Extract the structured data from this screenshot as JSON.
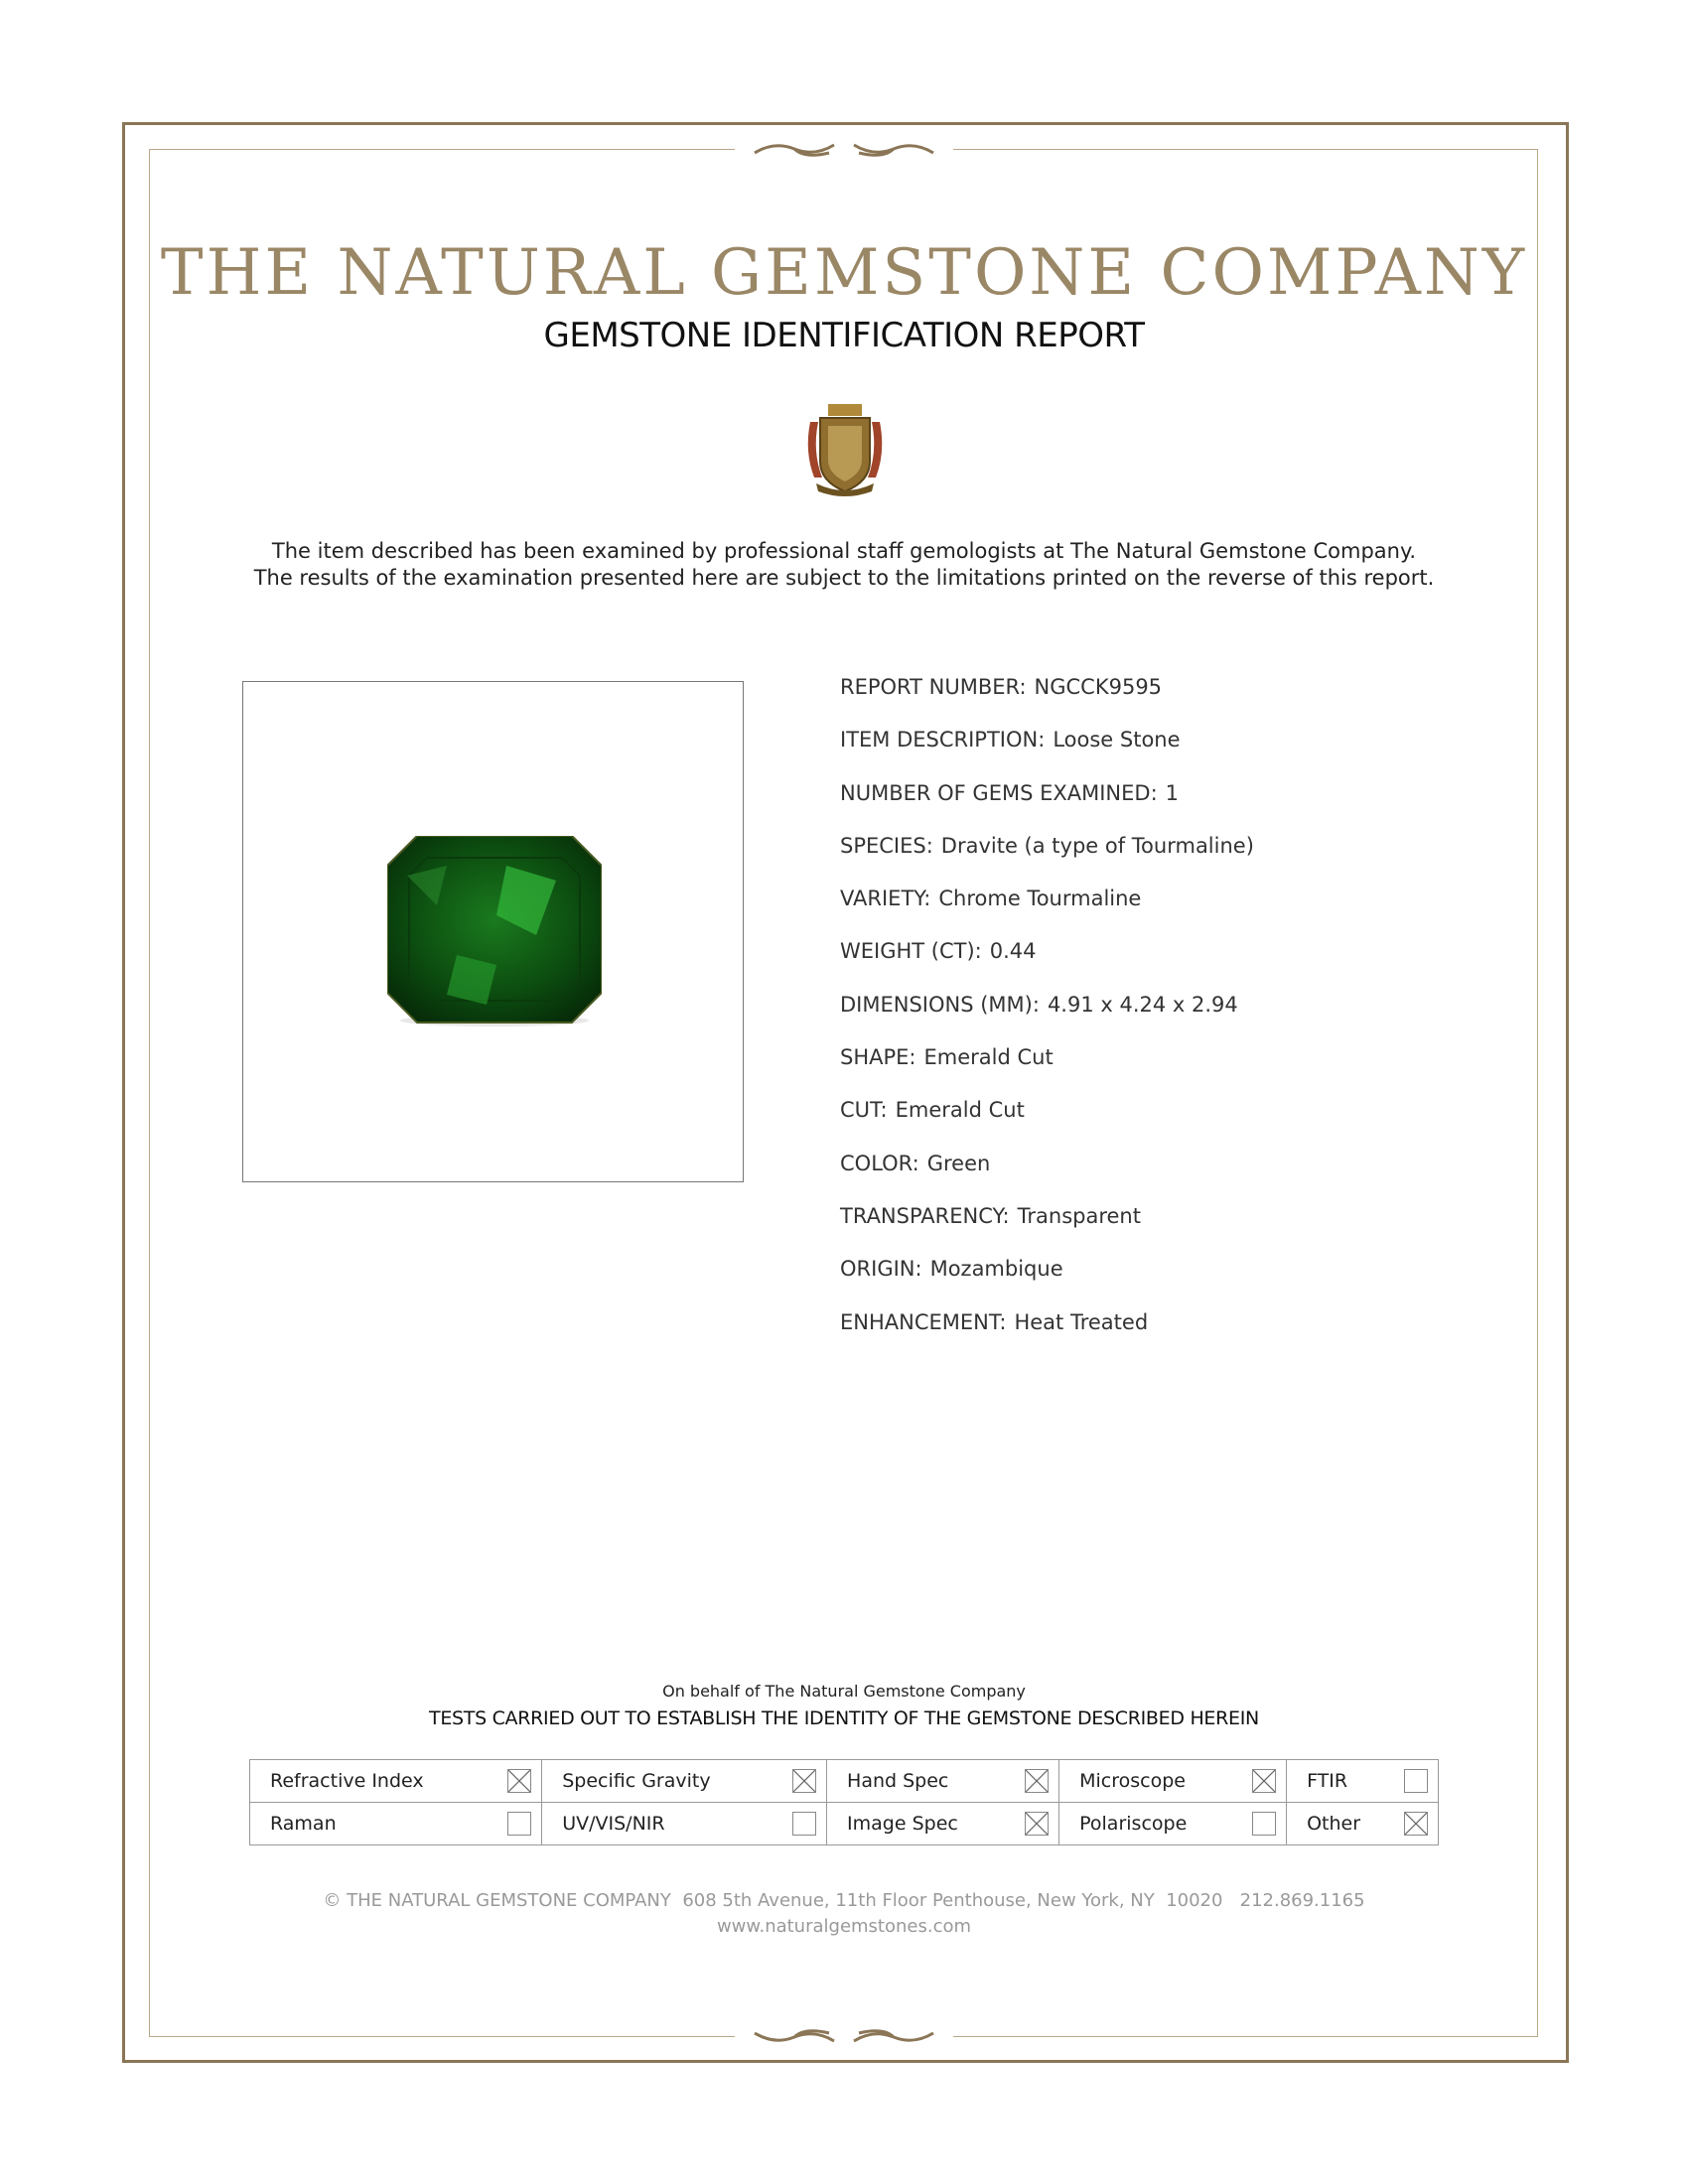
{
  "header": {
    "title": "THE NATURAL GEMSTONE COMPANY",
    "subtitle": "GEMSTONE IDENTIFICATION REPORT"
  },
  "intro": [
    "The item described has been examined by professional staff gemologists at The Natural Gemstone Company.",
    "The results of the examination presented here are subject to the limitations printed on the reverse of this report."
  ],
  "fields": [
    {
      "label": "REPORT NUMBER:",
      "value": "NGCCK9595"
    },
    {
      "label": "ITEM DESCRIPTION:",
      "value": "Loose Stone"
    },
    {
      "label": "NUMBER OF GEMS EXAMINED:",
      "value": "1"
    },
    {
      "label": "SPECIES:",
      "value": "Dravite (a type of Tourmaline)"
    },
    {
      "label": "VARIETY:",
      "value": "Chrome Tourmaline"
    },
    {
      "label": "WEIGHT (CT):",
      "value": "0.44"
    },
    {
      "label": "DIMENSIONS (MM):",
      "value": "4.91 x 4.24 x 2.94"
    },
    {
      "label": "SHAPE:",
      "value": "Emerald Cut"
    },
    {
      "label": "CUT:",
      "value": "Emerald Cut"
    },
    {
      "label": "COLOR:",
      "value": "Green"
    },
    {
      "label": "TRANSPARENCY:",
      "value": "Transparent"
    },
    {
      "label": "ORIGIN:",
      "value": "Mozambique"
    },
    {
      "label": "ENHANCEMENT:",
      "value": "Heat Treated"
    }
  ],
  "footer": {
    "behalf": "On behalf of The Natural Gemstone Company",
    "tests_title": "TESTS CARRIED OUT TO ESTABLISH THE IDENTITY OF THE GEMSTONE DESCRIBED HEREIN",
    "tests": [
      [
        {
          "label": "Refractive Index",
          "checked": true
        },
        {
          "label": "Specific Gravity",
          "checked": true
        },
        {
          "label": "Hand Spec",
          "checked": true
        },
        {
          "label": "Microscope",
          "checked": true
        },
        {
          "label": "FTIR",
          "checked": false
        }
      ],
      [
        {
          "label": "Raman",
          "checked": false
        },
        {
          "label": "UV/VIS/NIR",
          "checked": false
        },
        {
          "label": "Image Spec",
          "checked": true
        },
        {
          "label": "Polariscope",
          "checked": false
        },
        {
          "label": "Other",
          "checked": true
        }
      ]
    ],
    "address": "© THE NATURAL GEMSTONE COMPANY  608 5th Avenue, 11th Floor Penthouse, New York, NY  10020   212.869.1165",
    "website": "www.naturalgemstones.com"
  },
  "colors": {
    "border": "#8a7656",
    "title": "#9a8766",
    "gem": "#0f5a14"
  }
}
